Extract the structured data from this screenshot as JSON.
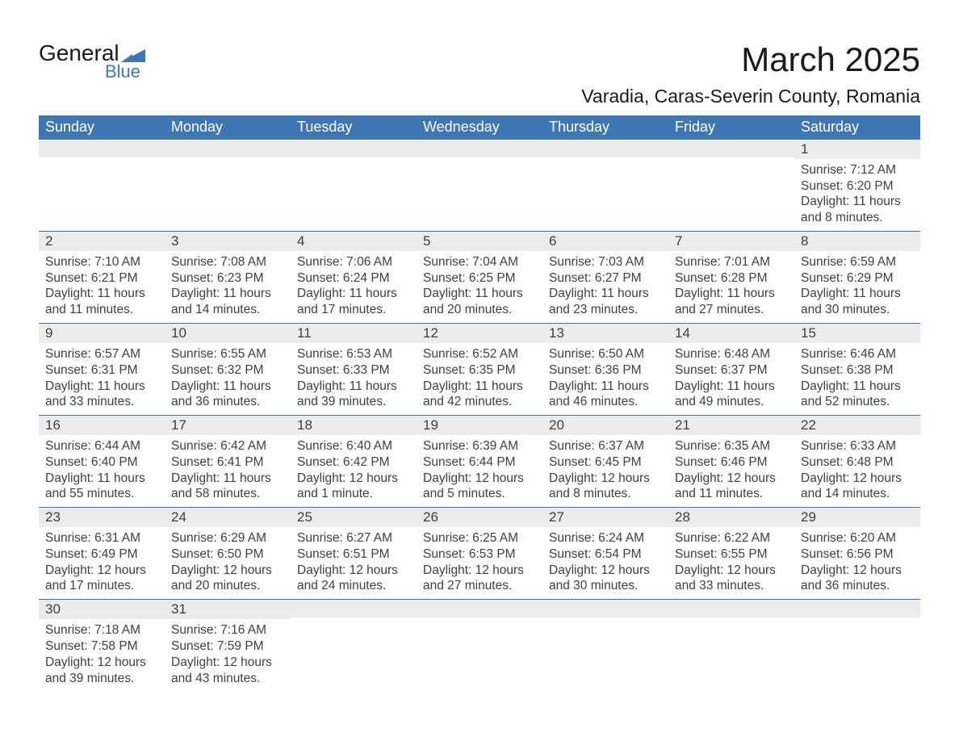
{
  "brand": {
    "line1": "General",
    "line2": "Blue",
    "accent": "#3e77b3"
  },
  "title": "March 2025",
  "location": "Varadia, Caras-Severin County, Romania",
  "colors": {
    "header_bg": "#3e77b3",
    "header_text": "#ffffff",
    "daynum_bg": "#ececec",
    "body_text": "#404040",
    "row_border": "#3e77b3",
    "page_bg": "#ffffff"
  },
  "typography": {
    "title_fontsize": 42,
    "location_fontsize": 23,
    "weekday_fontsize": 18,
    "cell_fontsize": 15.5
  },
  "weekdays": [
    "Sunday",
    "Monday",
    "Tuesday",
    "Wednesday",
    "Thursday",
    "Friday",
    "Saturday"
  ],
  "cells": [
    {
      "blank": true
    },
    {
      "blank": true
    },
    {
      "blank": true
    },
    {
      "blank": true
    },
    {
      "blank": true
    },
    {
      "blank": true
    },
    {
      "day": "1",
      "sunrise": "Sunrise: 7:12 AM",
      "sunset": "Sunset: 6:20 PM",
      "dl1": "Daylight: 11 hours",
      "dl2": "and 8 minutes."
    },
    {
      "day": "2",
      "sunrise": "Sunrise: 7:10 AM",
      "sunset": "Sunset: 6:21 PM",
      "dl1": "Daylight: 11 hours",
      "dl2": "and 11 minutes."
    },
    {
      "day": "3",
      "sunrise": "Sunrise: 7:08 AM",
      "sunset": "Sunset: 6:23 PM",
      "dl1": "Daylight: 11 hours",
      "dl2": "and 14 minutes."
    },
    {
      "day": "4",
      "sunrise": "Sunrise: 7:06 AM",
      "sunset": "Sunset: 6:24 PM",
      "dl1": "Daylight: 11 hours",
      "dl2": "and 17 minutes."
    },
    {
      "day": "5",
      "sunrise": "Sunrise: 7:04 AM",
      "sunset": "Sunset: 6:25 PM",
      "dl1": "Daylight: 11 hours",
      "dl2": "and 20 minutes."
    },
    {
      "day": "6",
      "sunrise": "Sunrise: 7:03 AM",
      "sunset": "Sunset: 6:27 PM",
      "dl1": "Daylight: 11 hours",
      "dl2": "and 23 minutes."
    },
    {
      "day": "7",
      "sunrise": "Sunrise: 7:01 AM",
      "sunset": "Sunset: 6:28 PM",
      "dl1": "Daylight: 11 hours",
      "dl2": "and 27 minutes."
    },
    {
      "day": "8",
      "sunrise": "Sunrise: 6:59 AM",
      "sunset": "Sunset: 6:29 PM",
      "dl1": "Daylight: 11 hours",
      "dl2": "and 30 minutes."
    },
    {
      "day": "9",
      "sunrise": "Sunrise: 6:57 AM",
      "sunset": "Sunset: 6:31 PM",
      "dl1": "Daylight: 11 hours",
      "dl2": "and 33 minutes."
    },
    {
      "day": "10",
      "sunrise": "Sunrise: 6:55 AM",
      "sunset": "Sunset: 6:32 PM",
      "dl1": "Daylight: 11 hours",
      "dl2": "and 36 minutes."
    },
    {
      "day": "11",
      "sunrise": "Sunrise: 6:53 AM",
      "sunset": "Sunset: 6:33 PM",
      "dl1": "Daylight: 11 hours",
      "dl2": "and 39 minutes."
    },
    {
      "day": "12",
      "sunrise": "Sunrise: 6:52 AM",
      "sunset": "Sunset: 6:35 PM",
      "dl1": "Daylight: 11 hours",
      "dl2": "and 42 minutes."
    },
    {
      "day": "13",
      "sunrise": "Sunrise: 6:50 AM",
      "sunset": "Sunset: 6:36 PM",
      "dl1": "Daylight: 11 hours",
      "dl2": "and 46 minutes."
    },
    {
      "day": "14",
      "sunrise": "Sunrise: 6:48 AM",
      "sunset": "Sunset: 6:37 PM",
      "dl1": "Daylight: 11 hours",
      "dl2": "and 49 minutes."
    },
    {
      "day": "15",
      "sunrise": "Sunrise: 6:46 AM",
      "sunset": "Sunset: 6:38 PM",
      "dl1": "Daylight: 11 hours",
      "dl2": "and 52 minutes."
    },
    {
      "day": "16",
      "sunrise": "Sunrise: 6:44 AM",
      "sunset": "Sunset: 6:40 PM",
      "dl1": "Daylight: 11 hours",
      "dl2": "and 55 minutes."
    },
    {
      "day": "17",
      "sunrise": "Sunrise: 6:42 AM",
      "sunset": "Sunset: 6:41 PM",
      "dl1": "Daylight: 11 hours",
      "dl2": "and 58 minutes."
    },
    {
      "day": "18",
      "sunrise": "Sunrise: 6:40 AM",
      "sunset": "Sunset: 6:42 PM",
      "dl1": "Daylight: 12 hours",
      "dl2": "and 1 minute."
    },
    {
      "day": "19",
      "sunrise": "Sunrise: 6:39 AM",
      "sunset": "Sunset: 6:44 PM",
      "dl1": "Daylight: 12 hours",
      "dl2": "and 5 minutes."
    },
    {
      "day": "20",
      "sunrise": "Sunrise: 6:37 AM",
      "sunset": "Sunset: 6:45 PM",
      "dl1": "Daylight: 12 hours",
      "dl2": "and 8 minutes."
    },
    {
      "day": "21",
      "sunrise": "Sunrise: 6:35 AM",
      "sunset": "Sunset: 6:46 PM",
      "dl1": "Daylight: 12 hours",
      "dl2": "and 11 minutes."
    },
    {
      "day": "22",
      "sunrise": "Sunrise: 6:33 AM",
      "sunset": "Sunset: 6:48 PM",
      "dl1": "Daylight: 12 hours",
      "dl2": "and 14 minutes."
    },
    {
      "day": "23",
      "sunrise": "Sunrise: 6:31 AM",
      "sunset": "Sunset: 6:49 PM",
      "dl1": "Daylight: 12 hours",
      "dl2": "and 17 minutes."
    },
    {
      "day": "24",
      "sunrise": "Sunrise: 6:29 AM",
      "sunset": "Sunset: 6:50 PM",
      "dl1": "Daylight: 12 hours",
      "dl2": "and 20 minutes."
    },
    {
      "day": "25",
      "sunrise": "Sunrise: 6:27 AM",
      "sunset": "Sunset: 6:51 PM",
      "dl1": "Daylight: 12 hours",
      "dl2": "and 24 minutes."
    },
    {
      "day": "26",
      "sunrise": "Sunrise: 6:25 AM",
      "sunset": "Sunset: 6:53 PM",
      "dl1": "Daylight: 12 hours",
      "dl2": "and 27 minutes."
    },
    {
      "day": "27",
      "sunrise": "Sunrise: 6:24 AM",
      "sunset": "Sunset: 6:54 PM",
      "dl1": "Daylight: 12 hours",
      "dl2": "and 30 minutes."
    },
    {
      "day": "28",
      "sunrise": "Sunrise: 6:22 AM",
      "sunset": "Sunset: 6:55 PM",
      "dl1": "Daylight: 12 hours",
      "dl2": "and 33 minutes."
    },
    {
      "day": "29",
      "sunrise": "Sunrise: 6:20 AM",
      "sunset": "Sunset: 6:56 PM",
      "dl1": "Daylight: 12 hours",
      "dl2": "and 36 minutes."
    },
    {
      "day": "30",
      "sunrise": "Sunrise: 7:18 AM",
      "sunset": "Sunset: 7:58 PM",
      "dl1": "Daylight: 12 hours",
      "dl2": "and 39 minutes."
    },
    {
      "day": "31",
      "sunrise": "Sunrise: 7:16 AM",
      "sunset": "Sunset: 7:59 PM",
      "dl1": "Daylight: 12 hours",
      "dl2": "and 43 minutes."
    },
    {
      "blank": true
    },
    {
      "blank": true
    },
    {
      "blank": true
    },
    {
      "blank": true
    },
    {
      "blank": true
    }
  ]
}
